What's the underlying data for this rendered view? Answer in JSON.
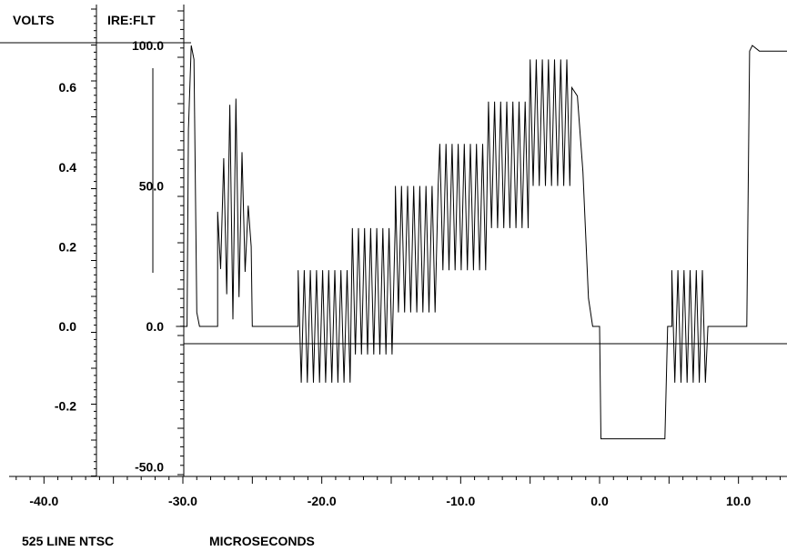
{
  "header": {
    "volts_label": "VOLTS",
    "ire_label": "IRE:FLT"
  },
  "footer": {
    "standard_label": "525 LINE NTSC",
    "unit_label": "MICROSECONDS"
  },
  "chart_data": {
    "type": "line",
    "title": "",
    "xlabel": "MICROSECONDS",
    "ylabel": "VOLTS",
    "ylabel_secondary": "IRE:FLT",
    "xlim": [
      -44,
      13.5
    ],
    "volts_axis": {
      "ticks": [
        "0.6",
        "0.4",
        "0.2",
        "0.0",
        "-0.2"
      ],
      "values": [
        0.6,
        0.4,
        0.2,
        0.0,
        -0.2
      ]
    },
    "ire_axis": {
      "ticks": [
        "100.0",
        "50.0",
        "0.0",
        "-50.0"
      ],
      "values": [
        100,
        50,
        0,
        -50
      ]
    },
    "x_ticks": [
      "-40.0",
      "-30.0",
      "-20.0",
      "-10.0",
      "0.0",
      "10.0"
    ],
    "x_tick_values": [
      -40,
      -30,
      -20,
      -10,
      0,
      10
    ],
    "series": [
      {
        "segments": [
          {
            "kind": "line",
            "points": [
              [
                -30.5,
                0
              ],
              [
                -29.7,
                0
              ],
              [
                -29.6,
                70
              ],
              [
                -29.4,
                100
              ],
              [
                -29.2,
                95
              ],
              [
                -29.0,
                5
              ],
              [
                -28.8,
                0
              ],
              [
                -27.5,
                0
              ]
            ]
          },
          {
            "kind": "burst",
            "x0": -27.5,
            "x1": -25.0,
            "center": 30,
            "peak_amp": 70,
            "envelope": "triangle",
            "step": 0.22
          },
          {
            "kind": "line",
            "points": [
              [
                -25.0,
                0
              ],
              [
                -21.7,
                0
              ]
            ]
          },
          {
            "kind": "burst",
            "x0": -21.7,
            "x1": -17.8,
            "center": 0,
            "lo": -20,
            "hi": 20,
            "step": 0.22
          },
          {
            "kind": "burst",
            "x0": -17.8,
            "x1": -14.7,
            "center": 0,
            "lo": -10,
            "hi": 35,
            "step": 0.22
          },
          {
            "kind": "burst",
            "x0": -14.7,
            "x1": -11.5,
            "center": 0,
            "lo": 5,
            "hi": 50,
            "step": 0.22
          },
          {
            "kind": "burst",
            "x0": -11.5,
            "x1": -8.0,
            "center": 0,
            "lo": 20,
            "hi": 65,
            "step": 0.22
          },
          {
            "kind": "burst",
            "x0": -8.0,
            "x1": -5.0,
            "center": 0,
            "lo": 35,
            "hi": 80,
            "step": 0.22
          },
          {
            "kind": "burst",
            "x0": -5.0,
            "x1": -2.0,
            "center": 0,
            "lo": 50,
            "hi": 95,
            "step": 0.22
          },
          {
            "kind": "line",
            "points": [
              [
                -2.0,
                85
              ],
              [
                -1.6,
                82
              ],
              [
                -1.2,
                55
              ],
              [
                -0.8,
                10
              ],
              [
                -0.5,
                0
              ],
              [
                0.0,
                0
              ],
              [
                0.1,
                -40
              ],
              [
                4.7,
                -40
              ],
              [
                4.9,
                0
              ],
              [
                5.2,
                0
              ]
            ]
          },
          {
            "kind": "burst",
            "x0": 5.2,
            "x1": 7.8,
            "center": 0,
            "lo": -20,
            "hi": 20,
            "step": 0.22
          },
          {
            "kind": "line",
            "points": [
              [
                7.8,
                0
              ],
              [
                10.6,
                0
              ],
              [
                10.8,
                98
              ],
              [
                11.0,
                100
              ],
              [
                11.5,
                98
              ],
              [
                13.5,
                98
              ]
            ]
          }
        ]
      }
    ]
  }
}
